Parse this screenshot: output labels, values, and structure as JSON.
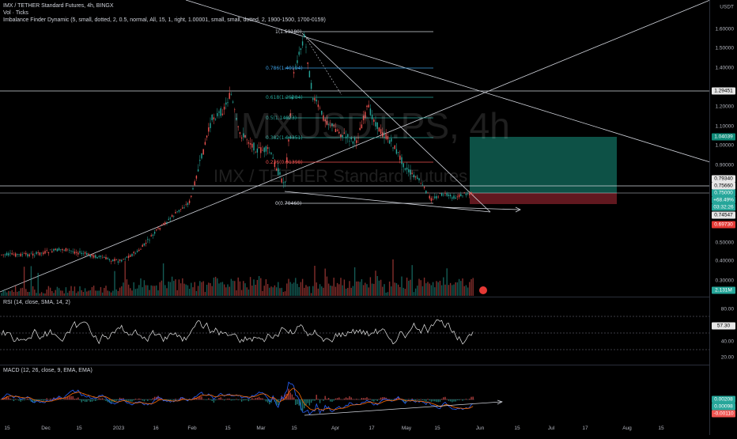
{
  "header": {
    "symbol_line": "IMX / TETHER Standard Futures, 4h, BINGX",
    "indicator_1": "Vol · Ticks",
    "indicator_2": "Imbalance Finder Dynamic (5, small, dotted, 2, 0.5, normal, All, 15, 1, right, 1.00001, small, small, dotted, 2, 1900-1500, 1700-0159)"
  },
  "currency": "USDT",
  "watermark": {
    "big": "IMXUSDT.PS, 4h",
    "sub": "IMX / TETHER Standard Futures"
  },
  "price_axis": [
    "1.60000",
    "1.50000",
    "1.40000",
    "1.20000",
    "1.10000",
    "1.00000",
    "0.90000",
    "0.50000",
    "0.40000",
    "0.30000"
  ],
  "price_tags": {
    "hline_upper": "1.29451",
    "target": "1.04039",
    "p_0793": "0.79340",
    "p_0756": "0.75660",
    "current": "0.75000",
    "change": "+68.49%",
    "countdown": "03:32:26",
    "p_0745": "0.74547",
    "stop": "0.69730",
    "volume": "2.131M"
  },
  "fib_labels": [
    "1(1.59180)",
    "0.786(1.40194)",
    "0.618(1.25284)",
    "0.5(1.14823)",
    "0.382(1.04351)",
    "0.236(0.91398)",
    "0(0.70460)"
  ],
  "rsi": {
    "title": "RSI (14, close, SMA, 14, 2)",
    "axis": [
      "80.00",
      "40.00",
      "20.00"
    ],
    "value": "57.30"
  },
  "macd": {
    "title": "MACD (12, 26, close, 9, EMA, EMA)",
    "tags": [
      "0.00208",
      "0.00098",
      "-0.00110"
    ]
  },
  "time_axis": [
    "15",
    "Dec",
    "15",
    "2023",
    "16",
    "Feb",
    "15",
    "Mar",
    "15",
    "Apr",
    "17",
    "May",
    "15",
    "Jun",
    "15",
    "Jul",
    "17",
    "Aug",
    "15"
  ],
  "colors": {
    "up": "#26a69a",
    "down": "#ef5350",
    "bg": "#000000",
    "target_zone": "#0f5f52",
    "stop_zone": "#6b1b22"
  }
}
